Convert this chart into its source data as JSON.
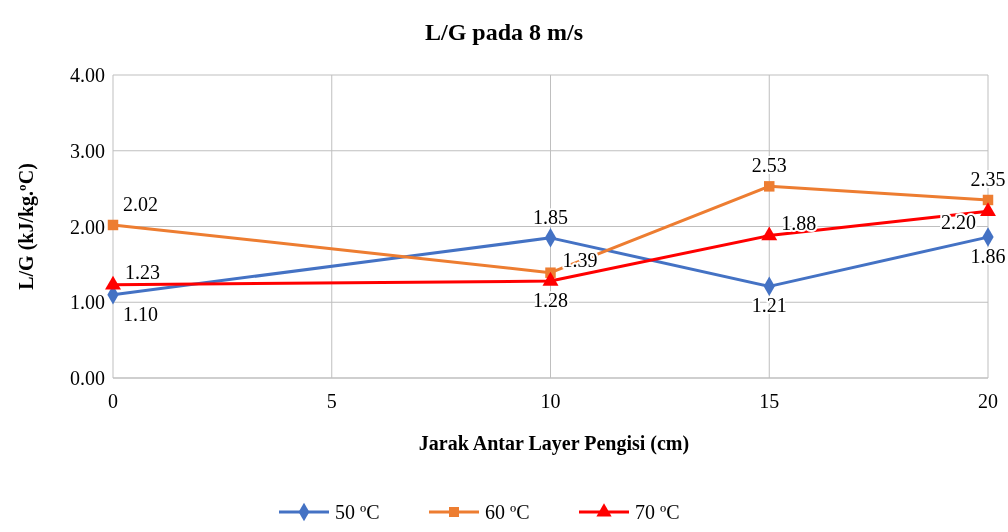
{
  "chart_data": {
    "type": "line",
    "title": "L/G pada 8 m/s",
    "xlabel": "Jarak Antar Layer Pengisi (cm)",
    "ylabel": "L/G (kJ/kg.ºC)",
    "x": [
      0,
      10,
      15,
      20
    ],
    "series": [
      {
        "name": "50 ºC",
        "color": "#4472c4",
        "marker": "diamond",
        "values": [
          1.1,
          1.85,
          1.21,
          1.86
        ],
        "value_labels": [
          "1.10",
          "1.85",
          "1.21",
          "1.86"
        ]
      },
      {
        "name": "60 ºC",
        "color": "#ed7d31",
        "marker": "square",
        "values": [
          2.02,
          1.39,
          2.53,
          2.35
        ],
        "value_labels": [
          "2.02",
          "1.39",
          "2.53",
          "2.35"
        ]
      },
      {
        "name": "70 ºC",
        "color": "#ff0000",
        "marker": "triangle",
        "values": [
          1.23,
          1.28,
          1.88,
          2.2
        ],
        "value_labels": [
          "1.23",
          "1.28",
          "1.88",
          "2.20"
        ]
      }
    ],
    "xlim": [
      0,
      20
    ],
    "xticks": [
      0,
      5,
      10,
      15,
      20
    ],
    "ylim": [
      0,
      4
    ],
    "yticks": [
      {
        "value": 0,
        "label": "0.00"
      },
      {
        "value": 1,
        "label": "1.00"
      },
      {
        "value": 2,
        "label": "2.00"
      },
      {
        "value": 3,
        "label": "3.00"
      },
      {
        "value": 4,
        "label": "4.00"
      }
    ],
    "grid": true,
    "legend": "bottom"
  }
}
